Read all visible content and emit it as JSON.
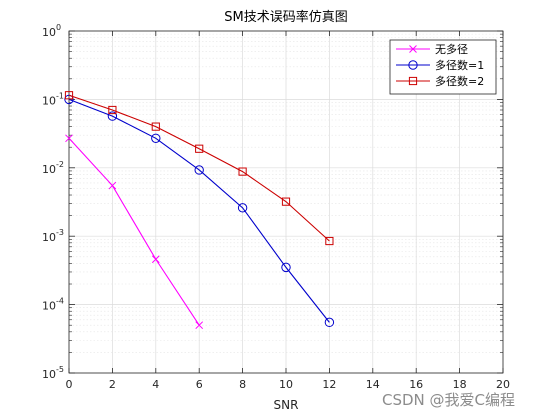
{
  "chart_data": {
    "type": "line",
    "title": "SM技术误码率仿真图",
    "xlabel": "SNR",
    "ylabel": "",
    "xlim": [
      0,
      20
    ],
    "ylim": [
      1e-05,
      1
    ],
    "yscale": "log",
    "grid": true,
    "minor_grid": true,
    "legend_position": "top-right",
    "x_ticks": [
      "0",
      "2",
      "4",
      "6",
      "8",
      "10",
      "12",
      "14",
      "16",
      "18",
      "20"
    ],
    "y_ticks": [
      {
        "base": "10",
        "exp": "0"
      },
      {
        "base": "10",
        "exp": "-1"
      },
      {
        "base": "10",
        "exp": "-2"
      },
      {
        "base": "10",
        "exp": "-3"
      },
      {
        "base": "10",
        "exp": "-4"
      },
      {
        "base": "10",
        "exp": "-5"
      }
    ],
    "series": [
      {
        "name": "无多径",
        "color": "#ff00ff",
        "marker": "x",
        "x": [
          0,
          2,
          4,
          6
        ],
        "y": [
          0.027,
          0.0055,
          0.00046,
          5e-05
        ]
      },
      {
        "name": "多径数=1",
        "color": "#0000cc",
        "marker": "circle",
        "x": [
          0,
          2,
          4,
          6,
          8,
          10,
          12
        ],
        "y": [
          0.1,
          0.057,
          0.027,
          0.0093,
          0.0026,
          0.00035,
          5.5e-05
        ]
      },
      {
        "name": "多径数=2",
        "color": "#cc0000",
        "marker": "square",
        "x": [
          0,
          2,
          4,
          6,
          8,
          10,
          12
        ],
        "y": [
          0.115,
          0.07,
          0.04,
          0.019,
          0.0088,
          0.0032,
          0.00085
        ]
      }
    ]
  },
  "watermark": "CSDN @我爱C编程"
}
